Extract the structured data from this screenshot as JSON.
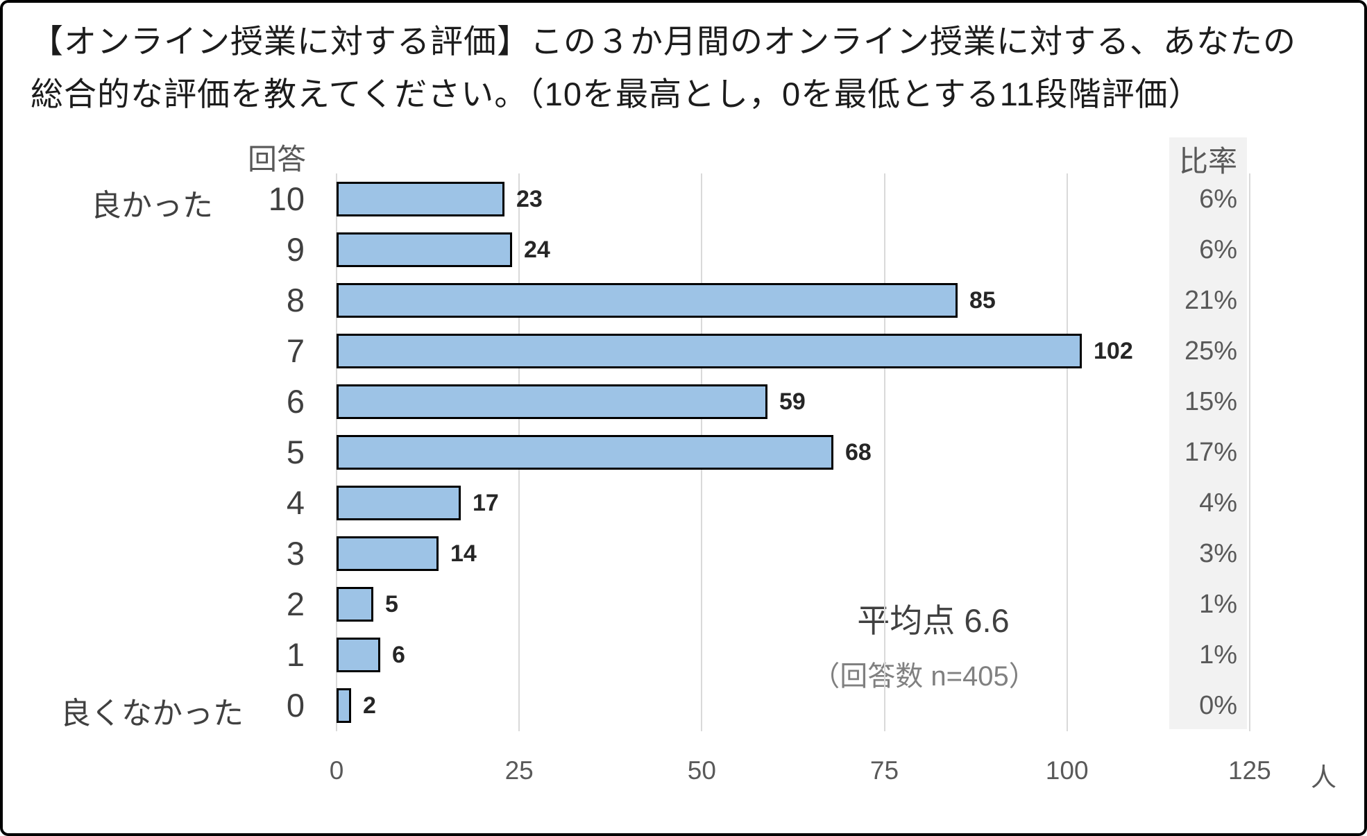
{
  "title": {
    "line1": "【オンライン授業に対する評価】この３か月間のオンライン授業に対する、あなたの",
    "line2": "総合的な評価を教えてください。（10を最高とし，0を最低とする11段階評価）"
  },
  "chart_data": {
    "type": "bar",
    "orientation": "horizontal",
    "col_header_left": "回答",
    "col_header_right": "比率",
    "categories": [
      "10",
      "9",
      "8",
      "7",
      "6",
      "5",
      "4",
      "3",
      "2",
      "1",
      "0"
    ],
    "values": [
      23,
      24,
      85,
      102,
      59,
      68,
      17,
      14,
      5,
      6,
      2
    ],
    "percents": [
      "6%",
      "6%",
      "21%",
      "25%",
      "15%",
      "17%",
      "4%",
      "3%",
      "1%",
      "1%",
      "0%"
    ],
    "x_ticks": [
      "0",
      "25",
      "50",
      "75",
      "100",
      "125"
    ],
    "xlim": [
      0,
      125
    ],
    "x_unit": "人",
    "axis_label_top": "良かった",
    "axis_label_bottom": "良くなかった",
    "annotations": {
      "average": "平均点 6.6",
      "sample_size": "（回答数 n=405）"
    },
    "legend": "none",
    "grid": "vertical",
    "bar_fill_color": "#9DC3E6",
    "bar_border_color": "#000000",
    "grid_color": "#D9D9D9",
    "ratio_column_bg_color": "#F2F2F2"
  }
}
